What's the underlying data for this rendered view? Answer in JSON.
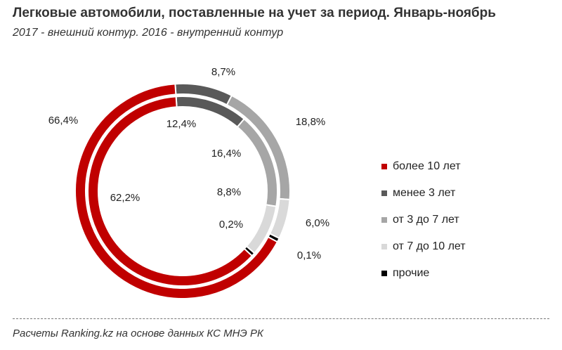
{
  "chart_data": {
    "type": "pie",
    "subtype": "double-donut",
    "title": "Легковые автомобили, поставленные на учет за период. Январь-ноябрь",
    "subtitle": "2017 - внешний контур. 2016 - внутренний контур",
    "categories": [
      "менее 3 лет",
      "от 3 до 7 лет",
      "от 7 до 10 лет",
      "прочие",
      "более 10 лет"
    ],
    "colors": [
      "#595959",
      "#a6a6a6",
      "#d9d9d9",
      "#000000",
      "#c00000"
    ],
    "series": [
      {
        "name": "2017",
        "ring": "outer",
        "values": [
          8.7,
          18.8,
          6.0,
          0.1,
          66.4
        ],
        "labels": [
          "8,7%",
          "18,8%",
          "6,0%",
          "0,1%",
          "66,4%"
        ]
      },
      {
        "name": "2016",
        "ring": "inner",
        "values": [
          12.4,
          16.4,
          8.8,
          0.2,
          62.2
        ],
        "labels": [
          "12,4%",
          "16,4%",
          "8,8%",
          "0,2%",
          "62,2%"
        ]
      }
    ],
    "legend": {
      "placement": "right",
      "entries": [
        "более 10 лет",
        "менее 3 лет",
        "от 3 до 7 лет",
        "от 7 до 10 лет",
        "прочие"
      ],
      "entry_colors": [
        "#c00000",
        "#595959",
        "#a6a6a6",
        "#d9d9d9",
        "#000000"
      ]
    }
  },
  "footer": "Расчеты Ranking.kz на основе данных КС МНЭ РК"
}
